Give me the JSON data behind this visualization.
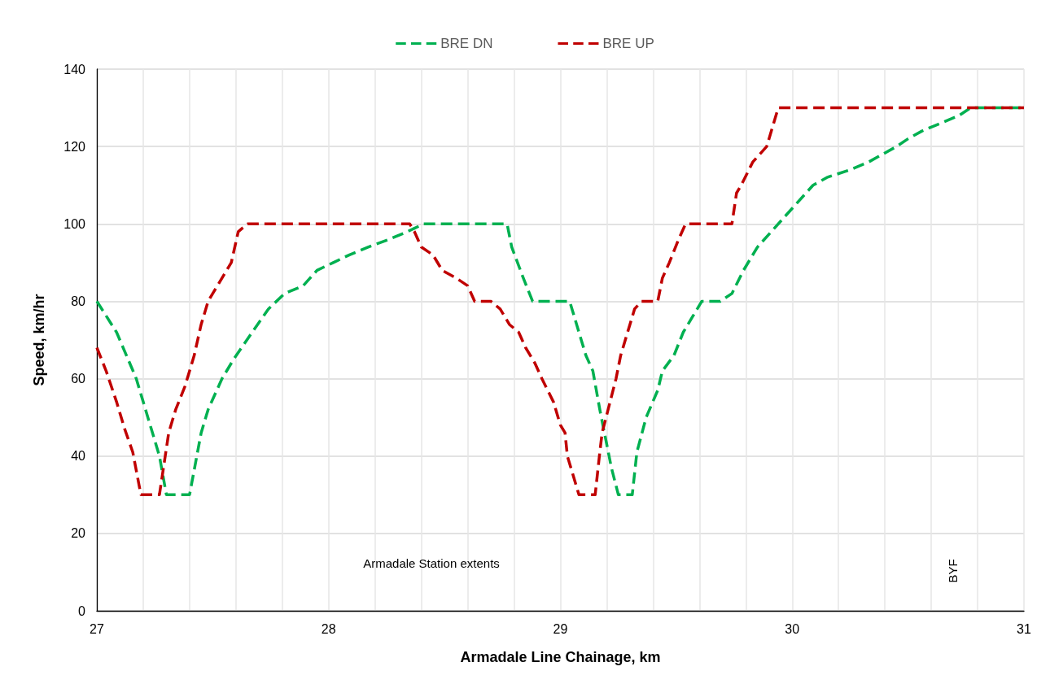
{
  "chart_data": {
    "type": "line",
    "xlabel": "Armadale Line Chainage, km",
    "ylabel": "Speed, km/hr",
    "xlim": [
      27,
      31
    ],
    "xticks": [
      27,
      {
        "value": 27.2,
        "label": null
      },
      {
        "value": 27.4,
        "label": null
      },
      {
        "value": 27.6,
        "label": null
      },
      {
        "value": 27.8,
        "label": null
      },
      28,
      {
        "value": 28.2,
        "label": null
      },
      {
        "value": 28.4,
        "label": null
      },
      {
        "value": 28.6,
        "label": null
      },
      {
        "value": 28.8,
        "label": null
      },
      29,
      {
        "value": 29.2,
        "label": null
      },
      {
        "value": 29.4,
        "label": null
      },
      {
        "value": 29.6,
        "label": null
      },
      {
        "value": 29.8,
        "label": null
      },
      30,
      {
        "value": 30.2,
        "label": null
      },
      {
        "value": 30.4,
        "label": null
      },
      {
        "value": 30.6,
        "label": null
      },
      {
        "value": 30.8,
        "label": null
      },
      31
    ],
    "ylim": [
      0,
      140
    ],
    "yticks": [
      0,
      20,
      40,
      60,
      80,
      100,
      120,
      140
    ],
    "grid": true,
    "legend": "top",
    "line_style": "dashed",
    "marker": "none",
    "annotations": [
      "Armadale Station extents",
      "BYF"
    ],
    "series": [
      {
        "name": "BRE DN",
        "color": "#00b050",
        "x": [
          27,
          27.085,
          27.156,
          27.17,
          27.2,
          27.27,
          27.3,
          27.4,
          27.45,
          27.48,
          27.54,
          27.59,
          27.67,
          27.74,
          27.81,
          27.89,
          27.92,
          27.95,
          28.02,
          28.09,
          28.17,
          28.26,
          28.34,
          28.41,
          28.77,
          28.79,
          28.84,
          28.88,
          29.04,
          29.08,
          29.11,
          29.14,
          29.17,
          29.19,
          29.22,
          29.25,
          29.31,
          29.33,
          29.37,
          29.42,
          29.44,
          29.49,
          29.53,
          29.57,
          29.61,
          29.69,
          29.74,
          29.79,
          29.85,
          29.91,
          30,
          30.09,
          30.15,
          30.25,
          30.33,
          30.45,
          30.5,
          30.56,
          30.64,
          30.72,
          30.77,
          31
        ],
        "values": [
          80,
          72,
          62,
          60,
          54,
          40,
          30,
          30,
          46,
          52,
          60,
          65,
          72,
          78,
          82,
          84,
          86,
          88,
          90,
          92,
          94,
          96,
          98,
          100,
          100,
          94,
          86,
          80,
          80,
          72,
          66,
          62,
          52,
          46,
          37,
          30,
          30,
          41,
          50,
          57,
          62,
          66,
          72,
          76,
          80,
          80,
          82,
          88,
          94,
          98,
          104,
          110,
          112,
          114,
          116,
          120,
          122,
          124,
          126,
          128,
          130,
          130
        ]
      },
      {
        "name": "BRE UP",
        "color": "#c00000",
        "x": [
          27,
          27.04,
          27.085,
          27.12,
          27.155,
          27.19,
          27.27,
          27.31,
          27.34,
          27.38,
          27.42,
          27.45,
          27.48,
          27.53,
          27.58,
          27.61,
          27.65,
          28.35,
          28.37,
          28.4,
          28.45,
          28.49,
          28.55,
          28.6,
          28.63,
          28.7,
          28.74,
          28.78,
          28.82,
          28.85,
          28.89,
          28.92,
          28.97,
          29,
          29.02,
          29.03,
          29.08,
          29.15,
          29.17,
          29.18,
          29.21,
          29.24,
          29.26,
          29.29,
          29.32,
          29.35,
          29.42,
          29.44,
          29.47,
          29.51,
          29.54,
          29.74,
          29.76,
          29.78,
          29.83,
          29.89,
          29.94,
          31
        ],
        "values": [
          68,
          62,
          54,
          47,
          41,
          30,
          30,
          46,
          52,
          58,
          66,
          74,
          80,
          85,
          90,
          98,
          100,
          100,
          98,
          94,
          92,
          88,
          86,
          84,
          80,
          80,
          78,
          74,
          72,
          68,
          64,
          60,
          54,
          48,
          46,
          40,
          30,
          30,
          41,
          46,
          53,
          60,
          66,
          72,
          78,
          80,
          80,
          86,
          90,
          96,
          100,
          100,
          108,
          110,
          116,
          120,
          130,
          130
        ]
      }
    ]
  }
}
